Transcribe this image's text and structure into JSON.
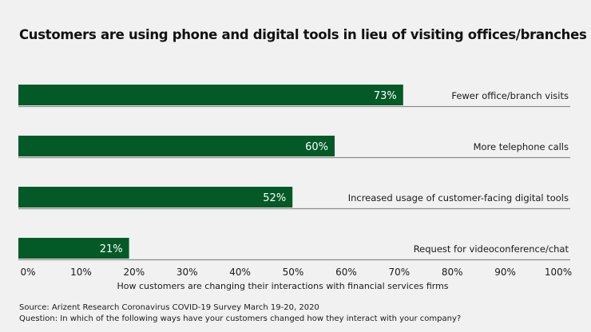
{
  "chart_data": {
    "type": "bar",
    "orientation": "horizontal",
    "title": "Customers are using phone and digital tools in lieu of visiting offices/branches",
    "categories": [
      "Fewer office/branch visits",
      "More telephone calls",
      "Increased usage of customer-facing digital tools",
      "Request for videoconference/chat"
    ],
    "values": [
      73,
      60,
      52,
      21
    ],
    "value_labels": [
      "73%",
      "60%",
      "52%",
      "21%"
    ],
    "xlabel": "How customers are changing their interactions with financial services firms",
    "xlim": [
      0,
      100
    ],
    "xticks": [
      "0%",
      "10%",
      "20%",
      "30%",
      "40%",
      "50%",
      "60%",
      "70%",
      "80%",
      "90%",
      "100%"
    ],
    "grid": false,
    "legend": "none",
    "colors": {
      "bar": "#035a27",
      "separator": "#8c8c8c",
      "label_on_bar": "#ffffff"
    }
  },
  "footer": {
    "source": "Source: Arizent Research Coronavirus COVID-19 Survey March 19-20, 2020",
    "question": "Question: In which of the following ways have your customers changed how they interact with your company?"
  }
}
